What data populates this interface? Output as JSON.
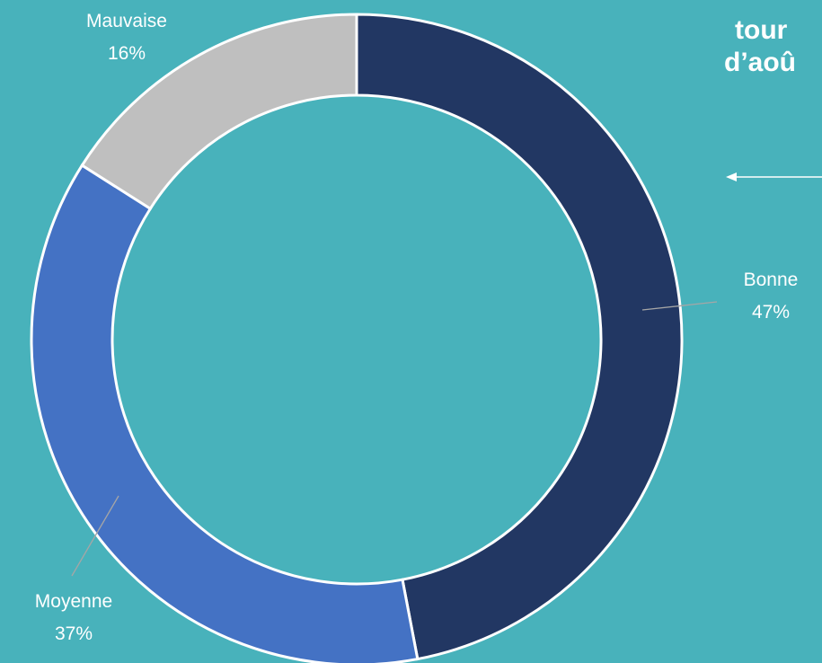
{
  "background_color": "#48b2bb",
  "title_lines": [
    "tour",
    "d’aoû"
  ],
  "chart_data": {
    "type": "pie",
    "variant": "donut",
    "categories": [
      "Bonne",
      "Moyenne",
      "Mauvaise"
    ],
    "values": [
      47,
      37,
      16
    ],
    "value_labels": [
      "47%",
      "37%",
      "16%"
    ],
    "colors": [
      "#223763",
      "#4472c4",
      "#bfbfbf"
    ],
    "slice_border_color": "#ffffff",
    "start_angle": "top (12 o'clock)",
    "direction": "clockwise"
  }
}
